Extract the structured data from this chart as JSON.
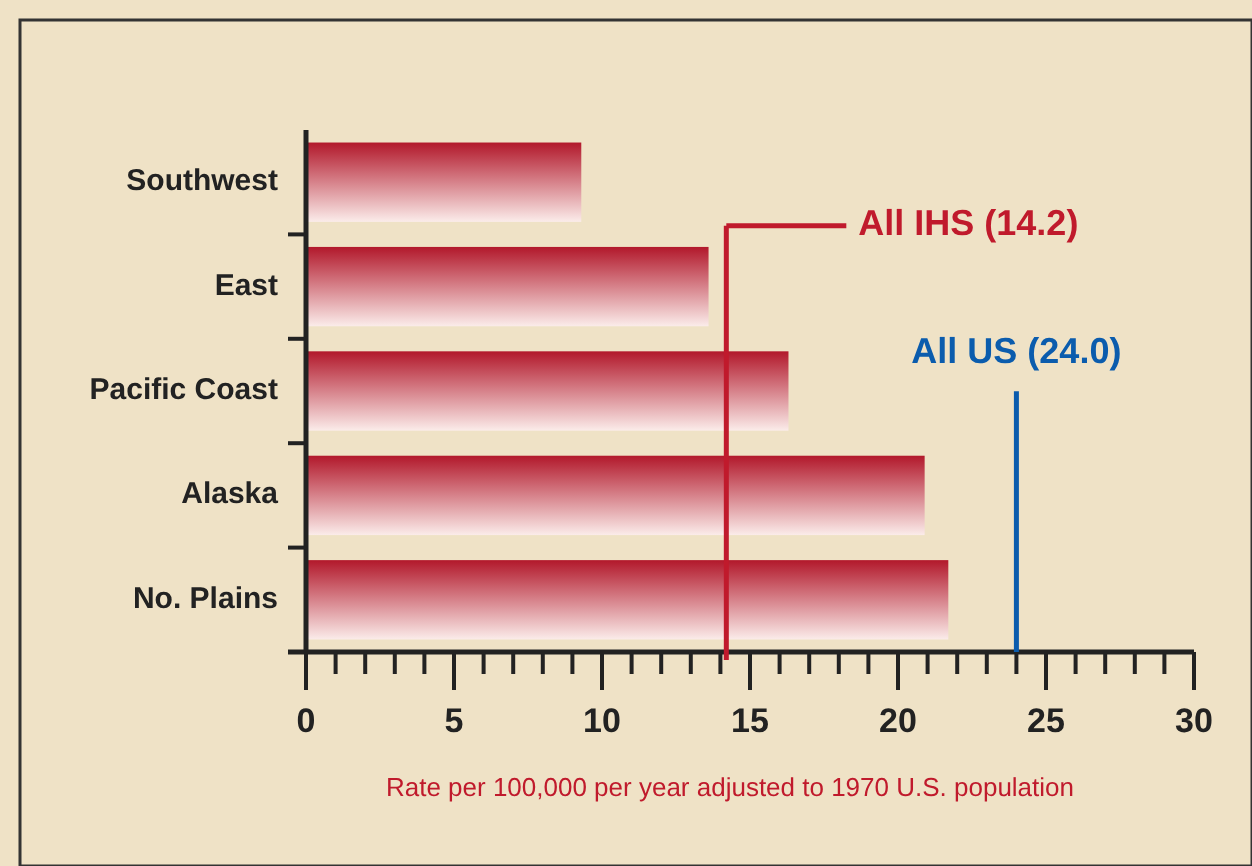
{
  "chart_data": {
    "type": "bar",
    "orientation": "horizontal",
    "categories": [
      "Southwest",
      "East",
      "Pacific Coast",
      "Alaska",
      "No. Plains"
    ],
    "values": [
      9.3,
      13.6,
      16.3,
      20.9,
      21.7
    ],
    "color": "#b2182b",
    "xlim": [
      0,
      30
    ],
    "xticks": [
      0,
      {
        "value": 1,
        "label": null
      },
      {
        "value": 2,
        "label": null
      },
      {
        "value": 3,
        "label": null
      },
      {
        "value": 4,
        "label": null
      },
      5,
      {
        "value": 6,
        "label": null
      },
      {
        "value": 7,
        "label": null
      },
      {
        "value": 8,
        "label": null
      },
      {
        "value": 9,
        "label": null
      },
      10,
      {
        "value": 11,
        "label": null
      },
      {
        "value": 12,
        "label": null
      },
      {
        "value": 13,
        "label": null
      },
      {
        "value": 14,
        "label": null
      },
      15,
      {
        "value": 16,
        "label": null
      },
      {
        "value": 17,
        "label": null
      },
      {
        "value": 18,
        "label": null
      },
      {
        "value": 19,
        "label": null
      },
      20,
      {
        "value": 21,
        "label": null
      },
      {
        "value": 22,
        "label": null
      },
      {
        "value": 23,
        "label": null
      },
      {
        "value": 24,
        "label": null
      },
      25,
      {
        "value": 26,
        "label": null
      },
      {
        "value": 27,
        "label": null
      },
      {
        "value": 28,
        "label": null
      },
      {
        "value": 29,
        "label": null
      },
      30
    ],
    "xlabel": "Rate per 100,000 per year adjusted to 1970 U.S. population",
    "ref_lines": [
      {
        "axis": "x",
        "value": 14.2,
        "label": "All IHS (14.2)",
        "color": "#c01a2c"
      },
      {
        "axis": "x",
        "value": 24.0,
        "label": "All US (24.0)",
        "color": "#0b5cad"
      }
    ],
    "grid": false
  }
}
